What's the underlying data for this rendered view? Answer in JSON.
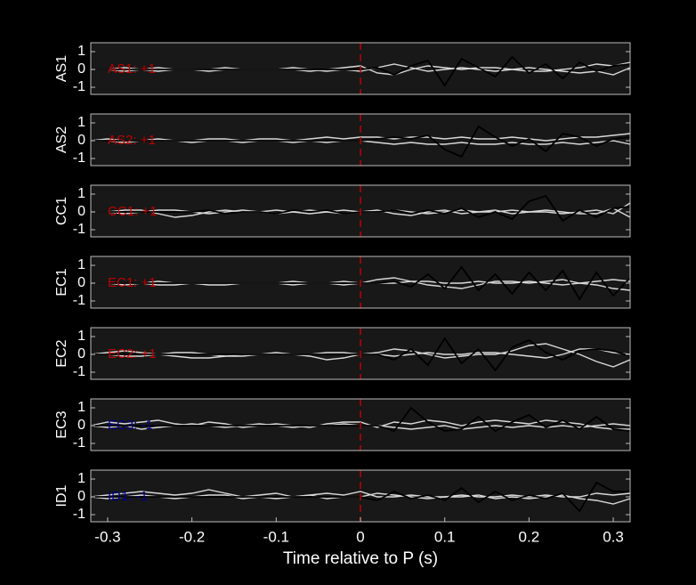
{
  "chart_data": [
    {
      "type": "line",
      "ylabel": "AS1",
      "annotation": {
        "text": "AS1: +1",
        "color": "#c00000"
      },
      "vline": {
        "x": 0,
        "color": "#c00000"
      },
      "xlim": [
        -0.32,
        0.32
      ],
      "ylim": [
        -1.4,
        1.5
      ],
      "yticks": [
        -1,
        0,
        1
      ],
      "x": [
        -0.32,
        -0.3,
        -0.28,
        -0.26,
        -0.24,
        -0.22,
        -0.2,
        -0.18,
        -0.16,
        -0.14,
        -0.12,
        -0.1,
        -0.08,
        -0.06,
        -0.04,
        -0.02,
        0,
        0.02,
        0.04,
        0.06,
        0.08,
        0.1,
        0.12,
        0.14,
        0.16,
        0.18,
        0.2,
        0.22,
        0.24,
        0.26,
        0.28,
        0.3,
        0.32
      ],
      "series": [
        {
          "color": "#d9d9d9",
          "values": [
            0,
            0,
            0.1,
            0,
            -0.1,
            0,
            0,
            0,
            0.1,
            0,
            0,
            0,
            0,
            -0.1,
            0,
            0.1,
            0.2,
            -0.2,
            -0.3,
            0,
            0.2,
            0.1,
            0,
            0.1,
            0.1,
            0,
            -0.1,
            -0.1,
            0,
            0.1,
            0.3,
            0.2,
            0.4
          ]
        },
        {
          "color": "#d9d9d9",
          "values": [
            0,
            0,
            -0.1,
            0,
            0.1,
            0,
            0,
            -0.1,
            0,
            0,
            0,
            0,
            0.1,
            0,
            -0.1,
            0,
            -0.1,
            0.1,
            0.3,
            0.1,
            -0.1,
            0,
            0.1,
            0,
            -0.1,
            0,
            0.1,
            0,
            -0.1,
            -0.2,
            -0.1,
            -0.3,
            0.1
          ]
        },
        {
          "color": "#000000",
          "values": [
            0,
            0,
            0,
            0,
            0,
            0,
            0,
            0,
            0,
            0,
            0,
            0,
            0,
            0,
            0,
            0,
            0,
            0.1,
            -0.3,
            0.2,
            0.5,
            -0.9,
            0.6,
            0.1,
            -0.4,
            0.7,
            -0.2,
            0.3,
            -0.5,
            0.4,
            -0.1,
            0.2,
            0.3
          ]
        }
      ]
    },
    {
      "type": "line",
      "ylabel": "AS2",
      "annotation": {
        "text": "AS2: +1",
        "color": "#c00000"
      },
      "vline": {
        "x": 0,
        "color": "#c00000"
      },
      "xlim": [
        -0.32,
        0.32
      ],
      "ylim": [
        -1.4,
        1.5
      ],
      "yticks": [
        -1,
        0,
        1
      ],
      "x": [
        -0.32,
        -0.3,
        -0.28,
        -0.26,
        -0.24,
        -0.22,
        -0.2,
        -0.18,
        -0.16,
        -0.14,
        -0.12,
        -0.1,
        -0.08,
        -0.06,
        -0.04,
        -0.02,
        0,
        0.02,
        0.04,
        0.06,
        0.08,
        0.1,
        0.12,
        0.14,
        0.16,
        0.18,
        0.2,
        0.22,
        0.24,
        0.26,
        0.28,
        0.3,
        0.32
      ],
      "series": [
        {
          "color": "#d9d9d9",
          "values": [
            0,
            0.1,
            0,
            0,
            0.1,
            0,
            0,
            0.1,
            0.1,
            0,
            0.1,
            0.1,
            0,
            0.1,
            0.2,
            0.1,
            0.2,
            0.2,
            0.1,
            0.2,
            0.2,
            0.1,
            0.2,
            0.1,
            0.1,
            0.2,
            0.1,
            0,
            0.1,
            0.2,
            0.2,
            0.3,
            0.4
          ]
        },
        {
          "color": "#d9d9d9",
          "values": [
            0,
            0,
            -0.1,
            0,
            0,
            0,
            -0.1,
            0,
            0,
            -0.1,
            0,
            0,
            -0.1,
            0,
            -0.1,
            0,
            0,
            -0.1,
            -0.2,
            -0.1,
            -0.2,
            -0.2,
            -0.1,
            -0.2,
            -0.2,
            -0.1,
            -0.2,
            -0.2,
            -0.1,
            -0.2,
            -0.1,
            0,
            -0.2
          ]
        },
        {
          "color": "#000000",
          "values": [
            0,
            0,
            0,
            0,
            0,
            0,
            0,
            0,
            0,
            0,
            0,
            0,
            0,
            0,
            0,
            0,
            0,
            0.1,
            0.2,
            0.1,
            0.3,
            -0.5,
            -0.9,
            0.8,
            0.2,
            -0.3,
            0.1,
            -0.6,
            0.4,
            0.2,
            -0.3,
            0.1,
            0.2
          ]
        }
      ]
    },
    {
      "type": "line",
      "ylabel": "CC1",
      "annotation": {
        "text": "CC1: +1",
        "color": "#c00000"
      },
      "vline": {
        "x": 0,
        "color": "#c00000"
      },
      "xlim": [
        -0.32,
        0.32
      ],
      "ylim": [
        -1.4,
        1.5
      ],
      "yticks": [
        -1,
        0,
        1
      ],
      "x": [
        -0.32,
        -0.3,
        -0.28,
        -0.26,
        -0.24,
        -0.22,
        -0.2,
        -0.18,
        -0.16,
        -0.14,
        -0.12,
        -0.1,
        -0.08,
        -0.06,
        -0.04,
        -0.02,
        0,
        0.02,
        0.04,
        0.06,
        0.08,
        0.1,
        0.12,
        0.14,
        0.16,
        0.18,
        0.2,
        0.22,
        0.24,
        0.26,
        0.28,
        0.3,
        0.32
      ],
      "series": [
        {
          "color": "#d9d9d9",
          "values": [
            0,
            0,
            0.1,
            0.1,
            -0.1,
            -0.3,
            -0.2,
            0,
            0.1,
            0,
            0,
            0.1,
            0,
            -0.1,
            0,
            0.1,
            0,
            0,
            0.1,
            0,
            -0.1,
            0,
            0.1,
            0,
            0,
            0.1,
            0,
            0,
            -0.1,
            0,
            0.1,
            -0.1,
            0.5
          ]
        },
        {
          "color": "#d9d9d9",
          "values": [
            0,
            0,
            -0.1,
            0,
            0.1,
            0.1,
            0,
            -0.1,
            0,
            0.1,
            0,
            -0.1,
            0,
            0.1,
            0,
            -0.1,
            0,
            0.1,
            -0.1,
            -0.2,
            0,
            0.1,
            -0.1,
            0,
            0.1,
            -0.1,
            0,
            0.1,
            0,
            -0.1,
            -0.1,
            0.2,
            -0.3
          ]
        },
        {
          "color": "#000000",
          "values": [
            0,
            0,
            0,
            0,
            0,
            0,
            0,
            0.1,
            -0.1,
            0,
            0,
            -0.1,
            0.1,
            0,
            0.1,
            -0.1,
            0,
            0,
            0.1,
            -0.1,
            0.1,
            -0.1,
            0.2,
            -0.3,
            0,
            -0.4,
            0.6,
            0.9,
            -0.5,
            0.1,
            -0.3,
            0.2,
            0.3
          ]
        }
      ]
    },
    {
      "type": "line",
      "ylabel": "EC1",
      "annotation": {
        "text": "EC1: +1",
        "color": "#c00000"
      },
      "vline": {
        "x": 0,
        "color": "#c00000"
      },
      "xlim": [
        -0.32,
        0.32
      ],
      "ylim": [
        -1.4,
        1.5
      ],
      "yticks": [
        -1,
        0,
        1
      ],
      "x": [
        -0.32,
        -0.3,
        -0.28,
        -0.26,
        -0.24,
        -0.22,
        -0.2,
        -0.18,
        -0.16,
        -0.14,
        -0.12,
        -0.1,
        -0.08,
        -0.06,
        -0.04,
        -0.02,
        0,
        0.02,
        0.04,
        0.06,
        0.08,
        0.1,
        0.12,
        0.14,
        0.16,
        0.18,
        0.2,
        0.22,
        0.24,
        0.26,
        0.28,
        0.3,
        0.32
      ],
      "series": [
        {
          "color": "#d9d9d9",
          "values": [
            0,
            0,
            -0.1,
            0,
            0.1,
            0,
            0,
            -0.1,
            -0.1,
            0,
            0,
            0,
            0.1,
            0,
            0,
            0.1,
            0,
            0.2,
            0.3,
            0.1,
            -0.1,
            -0.2,
            -0.3,
            -0.1,
            0.1,
            0.1,
            0,
            0.1,
            0.2,
            0,
            -0.1,
            -0.3,
            -0.4
          ]
        },
        {
          "color": "#d9d9d9",
          "values": [
            0,
            0,
            0,
            0,
            -0.1,
            -0.1,
            0,
            0,
            0,
            0,
            0,
            0,
            -0.1,
            0,
            0,
            -0.1,
            0,
            0,
            0,
            0.1,
            0.1,
            0,
            0,
            0.1,
            0,
            0,
            0.1,
            0,
            -0.1,
            0,
            0.1,
            0.2,
            0.1
          ]
        },
        {
          "color": "#000000",
          "values": [
            0,
            0,
            0,
            0,
            0,
            0,
            0,
            0,
            0,
            0,
            0,
            0,
            0,
            0,
            0,
            0,
            0,
            0,
            0.1,
            -0.2,
            0.5,
            -0.3,
            0.9,
            -0.4,
            0.5,
            -0.6,
            0.6,
            -0.4,
            0.7,
            -0.9,
            0.6,
            -0.7,
            0.3
          ]
        }
      ]
    },
    {
      "type": "line",
      "ylabel": "EC2",
      "annotation": {
        "text": "EC2: +1",
        "color": "#c00000"
      },
      "vline": {
        "x": 0,
        "color": "#c00000"
      },
      "xlim": [
        -0.32,
        0.32
      ],
      "ylim": [
        -1.4,
        1.5
      ],
      "yticks": [
        -1,
        0,
        1
      ],
      "x": [
        -0.32,
        -0.3,
        -0.28,
        -0.26,
        -0.24,
        -0.22,
        -0.2,
        -0.18,
        -0.16,
        -0.14,
        -0.12,
        -0.1,
        -0.08,
        -0.06,
        -0.04,
        -0.02,
        0,
        0.02,
        0.04,
        0.06,
        0.08,
        0.1,
        0.12,
        0.14,
        0.16,
        0.18,
        0.2,
        0.22,
        0.24,
        0.26,
        0.28,
        0.3,
        0.32
      ],
      "series": [
        {
          "color": "#d9d9d9",
          "values": [
            0,
            0.1,
            0.2,
            0.1,
            0,
            -0.1,
            -0.2,
            -0.2,
            -0.1,
            0,
            0,
            0.1,
            0,
            -0.1,
            -0.3,
            -0.2,
            0,
            0.1,
            0.3,
            0.2,
            0,
            -0.2,
            -0.1,
            0,
            0,
            0.2,
            0.5,
            0.6,
            0.3,
            0,
            -0.4,
            -0.7,
            -0.3
          ]
        },
        {
          "color": "#d9d9d9",
          "values": [
            0,
            0,
            -0.1,
            -0.1,
            0,
            0.1,
            0.1,
            0,
            -0.1,
            -0.1,
            0,
            0,
            0,
            0,
            0.1,
            0.1,
            0,
            0,
            -0.1,
            0,
            0.1,
            0,
            0,
            0.1,
            0.1,
            0,
            -0.1,
            -0.2,
            0,
            0.3,
            0.3,
            0.1,
            0
          ]
        },
        {
          "color": "#000000",
          "values": [
            0,
            0,
            0,
            0,
            0,
            0,
            0,
            0,
            0,
            0,
            0,
            0,
            0,
            0,
            0,
            0,
            0,
            0,
            -0.3,
            0.3,
            -0.6,
            0.9,
            -0.5,
            0.3,
            -0.9,
            0.4,
            0.8,
            0.1,
            -0.3,
            0.2,
            0.3,
            0.2,
            -0.1
          ]
        }
      ]
    },
    {
      "type": "line",
      "ylabel": "EC3",
      "annotation": {
        "text": "EC3: -1",
        "color": "#00008b"
      },
      "vline": {
        "x": 0,
        "color": "#c00000"
      },
      "xlim": [
        -0.32,
        0.32
      ],
      "ylim": [
        -1.4,
        1.5
      ],
      "yticks": [
        -1,
        0,
        1
      ],
      "x": [
        -0.32,
        -0.3,
        -0.28,
        -0.26,
        -0.24,
        -0.22,
        -0.2,
        -0.18,
        -0.16,
        -0.14,
        -0.12,
        -0.1,
        -0.08,
        -0.06,
        -0.04,
        -0.02,
        0,
        0.02,
        0.04,
        0.06,
        0.08,
        0.1,
        0.12,
        0.14,
        0.16,
        0.18,
        0.2,
        0.22,
        0.24,
        0.26,
        0.28,
        0.3,
        0.32
      ],
      "series": [
        {
          "color": "#d9d9d9",
          "values": [
            0,
            0.2,
            0.1,
            0.2,
            0.3,
            0.1,
            0,
            0.2,
            0.1,
            -0.1,
            0,
            0.1,
            0,
            -0.1,
            0.1,
            0.2,
            0.2,
            -0.1,
            0.2,
            0.1,
            0.3,
            0.2,
            0,
            0.2,
            0.3,
            0.2,
            0.1,
            0.3,
            0.2,
            0.1,
            -0.1,
            -0.2,
            -0.2
          ]
        },
        {
          "color": "#d9d9d9",
          "values": [
            0,
            -0.1,
            0,
            -0.2,
            -0.1,
            0,
            0.1,
            0,
            -0.1,
            0,
            0.1,
            0,
            -0.1,
            0,
            0,
            0.1,
            0,
            0,
            -0.1,
            -0.2,
            -0.1,
            0,
            -0.2,
            -0.1,
            0,
            -0.1,
            0,
            -0.1,
            0,
            -0.1,
            0,
            0.1,
            0
          ]
        },
        {
          "color": "#000000",
          "values": [
            0,
            0,
            0,
            0,
            0,
            0,
            0,
            0,
            0,
            0,
            0,
            0,
            0,
            0,
            0,
            0,
            0,
            0,
            -0.3,
            1.0,
            0.2,
            -0.3,
            -0.2,
            0.5,
            -0.3,
            0.2,
            0.6,
            -0.1,
            0.3,
            -0.2,
            0.5,
            -0.2,
            -0.3
          ]
        }
      ]
    },
    {
      "type": "line",
      "ylabel": "ID1",
      "annotation": {
        "text": "ID1: -1",
        "color": "#00008b"
      },
      "vline": {
        "x": 0,
        "color": "#c00000"
      },
      "xlabel": "Time relative to P (s)",
      "xlim": [
        -0.32,
        0.32
      ],
      "ylim": [
        -1.4,
        1.5
      ],
      "yticks": [
        -1,
        0,
        1
      ],
      "xticks": [
        -0.3,
        -0.2,
        -0.1,
        0,
        0.1,
        0.2,
        0.3
      ],
      "x": [
        -0.32,
        -0.3,
        -0.28,
        -0.26,
        -0.24,
        -0.22,
        -0.2,
        -0.18,
        -0.16,
        -0.14,
        -0.12,
        -0.1,
        -0.08,
        -0.06,
        -0.04,
        -0.02,
        0,
        0.02,
        0.04,
        0.06,
        0.08,
        0.1,
        0.12,
        0.14,
        0.16,
        0.18,
        0.2,
        0.22,
        0.24,
        0.26,
        0.28,
        0.3,
        0.32
      ],
      "series": [
        {
          "color": "#d9d9d9",
          "values": [
            0,
            0.1,
            0.2,
            0.3,
            0.2,
            0.1,
            0.2,
            0.4,
            0.2,
            0,
            0.1,
            0.2,
            0,
            0.1,
            0.2,
            0.1,
            0.3,
            0,
            0,
            0.1,
            0,
            0,
            0.1,
            0,
            0,
            0.1,
            0,
            0.1,
            0,
            0,
            0.2,
            0.1,
            0.2
          ]
        },
        {
          "color": "#d9d9d9",
          "values": [
            0,
            -0.1,
            0,
            0.1,
            0,
            -0.1,
            0,
            0.1,
            0.1,
            -0.1,
            0,
            -0.1,
            0,
            0.1,
            -0.1,
            0,
            0,
            0.2,
            0.1,
            0,
            -0.1,
            0,
            0,
            0.1,
            -0.1,
            0,
            -0.1,
            0,
            0.1,
            -0.1,
            -0.2,
            -0.4,
            -0.1
          ]
        },
        {
          "color": "#000000",
          "values": [
            0,
            0,
            0,
            0,
            0,
            0,
            0,
            0,
            0,
            0,
            0,
            0,
            0,
            0,
            0,
            0,
            0,
            -0.2,
            0.3,
            -0.1,
            0.1,
            -0.2,
            0.5,
            -0.3,
            0.3,
            -0.2,
            0.1,
            -0.1,
            0.2,
            -0.8,
            0.8,
            0.3,
            0.3
          ]
        }
      ]
    }
  ]
}
